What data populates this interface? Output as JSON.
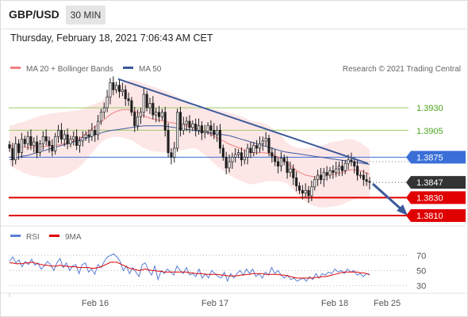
{
  "header": {
    "symbol": "GBP/USD",
    "timeframe": "30 MIN",
    "datetime": "Thursday, February 18, 2021 7:06:43 AM CET"
  },
  "legend": {
    "ma20_label": "MA 20 + Bollinger Bands",
    "ma50_label": "MA 50",
    "credit": "Research © 2021 Trading Central",
    "rsi_label": "RSI",
    "rsi_ma_label": "9MA"
  },
  "colors": {
    "ma20": "#f08080",
    "ma50": "#3c5a9a",
    "bands": "#fde2e2",
    "candle": "#1e1e1e",
    "trendline": "#3c5a9a",
    "green_level": "#9ccc65",
    "blue_level": "#3a6fd8",
    "red_level": "#e00000",
    "rsi": "#5a7fd6",
    "rsi_ma": "#e00000"
  },
  "chart_data": [
    {
      "type": "candlestick",
      "price_range": [
        1.3792,
        1.3965
      ],
      "x_labels": [
        "Feb 16",
        "Feb 17",
        "Feb 18",
        "Feb 25"
      ],
      "levels": [
        {
          "value": "1.3930",
          "kind": "resistance"
        },
        {
          "value": "1.3905",
          "kind": "resistance"
        },
        {
          "value": "1.3875",
          "kind": "pivot"
        },
        {
          "value": "1.3847",
          "kind": "last"
        },
        {
          "value": "1.3830",
          "kind": "support"
        },
        {
          "value": "1.3810",
          "kind": "support"
        }
      ],
      "close": [
        1.3885,
        1.3872,
        1.389,
        1.388,
        1.3895,
        1.389,
        1.3898,
        1.3888,
        1.3892,
        1.388,
        1.389,
        1.3898,
        1.3893,
        1.3888,
        1.3882,
        1.3898,
        1.3905,
        1.3895,
        1.39,
        1.389,
        1.3895,
        1.3898,
        1.3888,
        1.3893,
        1.3897,
        1.39,
        1.3898,
        1.3905,
        1.39,
        1.3915,
        1.3925,
        1.393,
        1.3942,
        1.3958,
        1.395,
        1.3955,
        1.3948,
        1.395,
        1.394,
        1.3938,
        1.3925,
        1.391,
        1.392,
        1.3925,
        1.3945,
        1.393,
        1.3935,
        1.3922,
        1.3925,
        1.392,
        1.3925,
        1.3905,
        1.388,
        1.3875,
        1.3885,
        1.3925,
        1.3905,
        1.3912,
        1.3915,
        1.3908,
        1.3912,
        1.3905,
        1.391,
        1.3902,
        1.3904,
        1.391,
        1.3905,
        1.39,
        1.3905,
        1.3885,
        1.3875,
        1.3863,
        1.387,
        1.3875,
        1.3878,
        1.388,
        1.3872,
        1.3875,
        1.3885,
        1.388,
        1.3888,
        1.3885,
        1.389,
        1.3893,
        1.3896,
        1.388,
        1.3876,
        1.387,
        1.3865,
        1.3874,
        1.387,
        1.3858,
        1.3862,
        1.3852,
        1.3843,
        1.3838,
        1.3835,
        1.3838,
        1.3832,
        1.3842,
        1.385,
        1.3855,
        1.385,
        1.3858,
        1.3855,
        1.386,
        1.3858,
        1.3862,
        1.3865,
        1.386,
        1.3868,
        1.3872,
        1.387,
        1.3865,
        1.3855,
        1.3855,
        1.385,
        1.3848,
        1.3847
      ],
      "ma20": [
        1.3888,
        1.3887,
        1.3887,
        1.3886,
        1.3886,
        1.3886,
        1.3887,
        1.3887,
        1.3887,
        1.3888,
        1.3888,
        1.3889,
        1.389,
        1.3891,
        1.3893,
        1.3895,
        1.3898,
        1.3902,
        1.3906,
        1.391,
        1.3914,
        1.3918,
        1.3922,
        1.3925,
        1.3927,
        1.3928,
        1.3928,
        1.3927,
        1.3925,
        1.3922,
        1.392,
        1.3918,
        1.3917,
        1.3916,
        1.3915,
        1.3914,
        1.3913,
        1.3912,
        1.3911,
        1.391,
        1.3909,
        1.3907,
        1.3905,
        1.3903,
        1.3901,
        1.3898,
        1.3895,
        1.3893,
        1.389,
        1.3888,
        1.3886,
        1.3884,
        1.3882,
        1.388,
        1.388,
        1.388,
        1.388,
        1.3879,
        1.3877,
        1.3875,
        1.3872,
        1.3868,
        1.3864,
        1.386,
        1.3857,
        1.3855,
        1.3854,
        1.3853,
        1.3853,
        1.3854,
        1.3855,
        1.3856,
        1.3857,
        1.3858,
        1.386,
        1.3861,
        1.3861,
        1.386,
        1.3858,
        1.3856
      ],
      "ma50": [
        1.3872,
        1.3874,
        1.3876,
        1.3877,
        1.3879,
        1.3881,
        1.3883,
        1.3885,
        1.3887,
        1.3889,
        1.3891,
        1.3893,
        1.3895,
        1.3897,
        1.39,
        1.3902,
        1.3904,
        1.3905,
        1.3906,
        1.3907,
        1.3908,
        1.3909,
        1.391,
        1.391,
        1.391,
        1.391,
        1.3909,
        1.3908,
        1.3907,
        1.3906,
        1.3905,
        1.3904,
        1.3903,
        1.3902,
        1.3901,
        1.39,
        1.3899,
        1.3897,
        1.3895,
        1.3893,
        1.3891,
        1.3889,
        1.3887,
        1.3885,
        1.3883,
        1.3881,
        1.388,
        1.3879,
        1.3878,
        1.3877,
        1.3876,
        1.3875,
        1.3874,
        1.3873,
        1.3872,
        1.3871,
        1.387,
        1.3869,
        1.3868,
        1.3867
      ],
      "trendline": {
        "start": 1.3962,
        "end": 1.3868
      }
    },
    {
      "type": "line",
      "title": "RSI",
      "y_ticks": [
        "70",
        "50",
        "30"
      ],
      "ylim": [
        20,
        85
      ],
      "rsi": [
        62,
        68,
        60,
        64,
        55,
        62,
        58,
        65,
        57,
        60,
        52,
        56,
        62,
        58,
        50,
        60,
        66,
        54,
        60,
        50,
        56,
        58,
        46,
        58,
        60,
        48,
        52,
        45,
        58,
        54,
        62,
        68,
        70,
        72,
        68,
        62,
        50,
        56,
        46,
        54,
        48,
        42,
        58,
        60,
        50,
        44,
        56,
        38,
        50,
        46,
        52,
        48,
        44,
        56,
        50,
        46,
        54,
        44,
        46,
        42,
        52,
        40,
        46,
        40,
        50,
        46,
        42,
        40,
        48,
        36,
        46,
        40,
        46,
        50,
        44,
        52,
        46,
        52,
        42,
        46,
        40,
        48,
        44,
        54,
        46,
        50,
        44,
        40,
        44,
        38,
        40,
        36,
        38,
        40,
        36,
        42,
        38,
        46,
        40,
        46,
        44,
        48,
        46,
        52,
        48,
        50,
        46,
        52,
        48,
        50,
        44,
        46,
        42,
        46,
        44
      ],
      "rsi_ma": [
        60,
        60,
        59,
        59,
        59,
        60,
        60,
        61,
        60,
        59,
        58,
        57,
        57,
        56,
        56,
        56,
        57,
        56,
        56,
        55,
        55,
        55,
        54,
        54,
        54,
        54,
        53,
        53,
        54,
        55,
        57,
        59,
        61,
        61,
        61,
        59,
        57,
        55,
        53,
        52,
        51,
        50,
        51,
        52,
        51,
        50,
        50,
        49,
        49,
        48,
        48,
        48,
        48,
        48,
        48,
        48,
        48,
        47,
        47,
        46,
        46,
        46,
        45,
        45,
        45,
        45,
        45,
        44,
        44,
        43,
        43,
        43,
        43,
        44,
        44,
        45,
        45,
        46,
        46,
        46,
        46,
        45,
        45,
        45,
        45,
        45,
        44,
        44,
        43,
        42,
        41,
        40,
        40,
        40,
        40,
        40,
        40,
        41,
        41,
        42,
        42,
        43,
        44,
        45,
        46,
        47,
        48,
        48,
        48,
        48,
        48,
        47,
        47,
        46,
        45
      ]
    }
  ]
}
